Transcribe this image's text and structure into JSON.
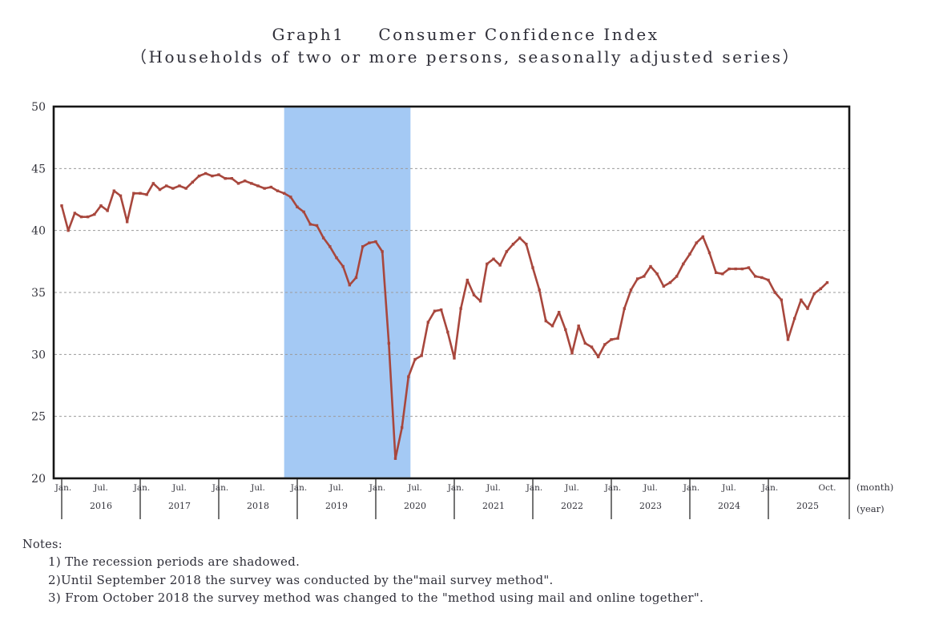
{
  "header": {
    "graph_label": "Graph1",
    "title": "Consumer Confidence Index",
    "subtitle": "（Households of two or more persons, seasonally adjusted series）"
  },
  "notes": {
    "label": "Notes:",
    "items": [
      "1) The recession periods are shadowed.",
      "2)Until September 2018 the survey was conducted by the\"mail survey method\".",
      "3) From October 2018 the survey method was changed to the \"method using mail and online together\"."
    ]
  },
  "chart_data": {
    "type": "line",
    "title": "Graph1 Consumer Confidence Index",
    "subtitle": "（Households of two or more persons, seasonally adjusted series）",
    "x_monthly_from": "2016-01",
    "x_monthly_to": "2025-10",
    "ylim": [
      20,
      50
    ],
    "yticks": [
      20,
      25,
      30,
      35,
      40,
      45,
      50
    ],
    "grid": "horizontal-dashed",
    "year_ticks": [
      "2016",
      "2017",
      "2018",
      "2019",
      "2020",
      "2021",
      "2022",
      "2023",
      "2024",
      "2025"
    ],
    "month_tick_labels": {
      "jan": "Jan.",
      "jul": "Jul.",
      "last": "Oct."
    },
    "axis_units": {
      "month": "(month)",
      "year": "(year)"
    },
    "recession_shading": {
      "color": "#a4c9f4",
      "from": "2018-11",
      "to": "2020-06"
    },
    "series": [
      {
        "name": "Consumer Confidence Index",
        "color": "#a8473d",
        "values": [
          42.0,
          40.0,
          41.4,
          41.1,
          41.1,
          41.3,
          42.0,
          41.6,
          43.2,
          42.8,
          40.7,
          43.0,
          43.0,
          42.9,
          43.8,
          43.3,
          43.6,
          43.4,
          43.6,
          43.4,
          43.9,
          44.4,
          44.6,
          44.4,
          44.5,
          44.2,
          44.2,
          43.8,
          44.0,
          43.8,
          43.6,
          43.4,
          43.5,
          43.2,
          43.0,
          42.7,
          41.9,
          41.5,
          40.5,
          40.4,
          39.4,
          38.7,
          37.8,
          37.1,
          35.6,
          36.2,
          38.7,
          39.0,
          39.1,
          38.3,
          30.9,
          21.6,
          24.1,
          28.2,
          29.6,
          29.9,
          32.6,
          33.5,
          33.6,
          31.8,
          29.7,
          33.7,
          36.0,
          34.8,
          34.3,
          37.3,
          37.7,
          37.2,
          38.3,
          38.9,
          39.4,
          38.9,
          37.0,
          35.2,
          32.7,
          32.3,
          33.4,
          32.0,
          30.1,
          32.3,
          30.9,
          30.6,
          29.8,
          30.8,
          31.2,
          31.3,
          33.7,
          35.2,
          36.1,
          36.3,
          37.1,
          36.5,
          35.5,
          35.8,
          36.3,
          37.3,
          38.1,
          39.0,
          39.5,
          38.2,
          36.6,
          36.5,
          36.9,
          36.9,
          36.9,
          37.0,
          36.3,
          36.2,
          36.0,
          35.0,
          34.4,
          31.2,
          32.9,
          34.4,
          33.7,
          34.9,
          35.3,
          35.8
        ]
      }
    ]
  }
}
